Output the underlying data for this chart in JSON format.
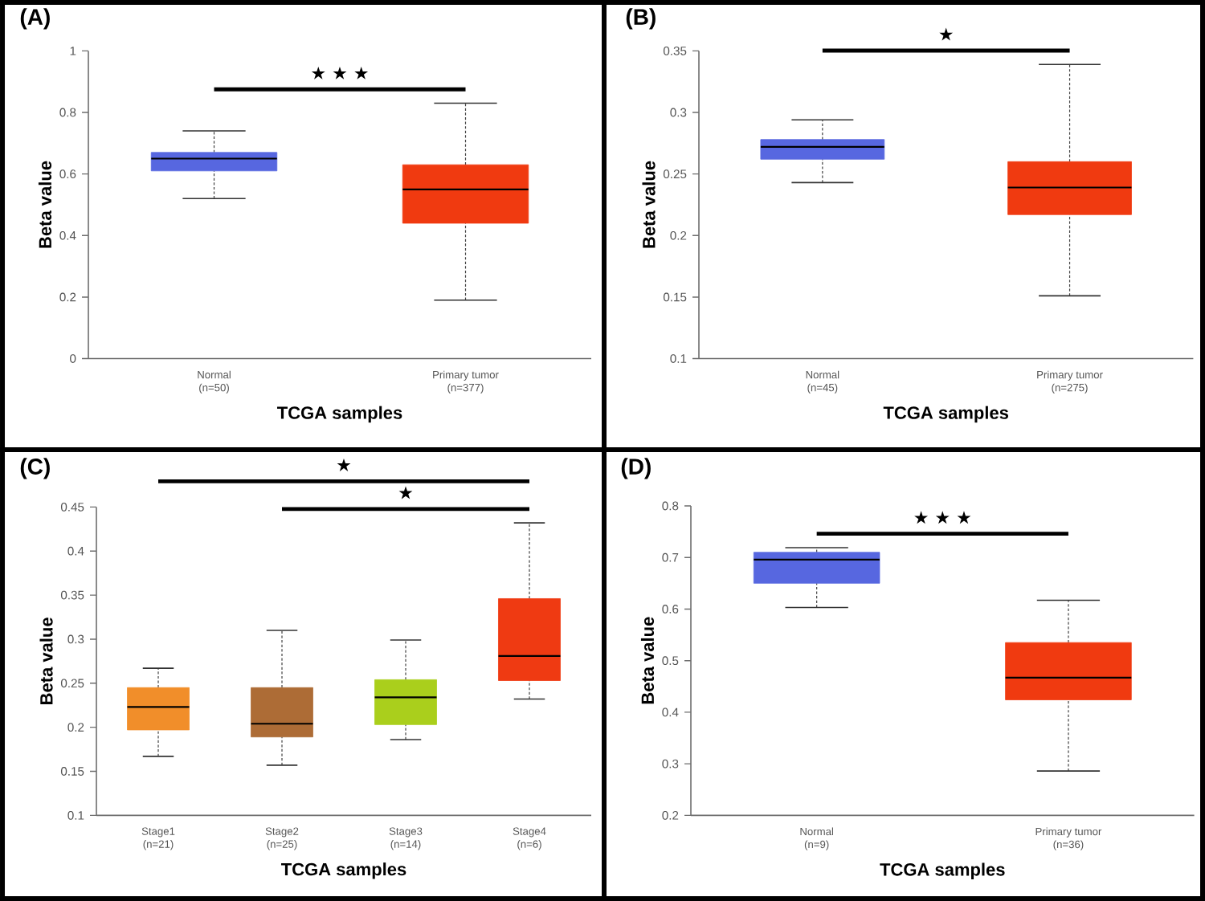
{
  "chart_data": [
    {
      "type": "box",
      "title": "(A)",
      "xlabel": "TCGA samples",
      "ylabel": "Beta value",
      "categories": [
        "Normal\n(n=50)",
        "Primary tumor\n(n=377)"
      ],
      "colors": [
        "#5767e0",
        "#f03a10"
      ],
      "boxes": [
        {
          "low": 0.52,
          "q1": 0.61,
          "median": 0.65,
          "q3": 0.67,
          "high": 0.74
        },
        {
          "low": 0.19,
          "q1": 0.44,
          "median": 0.55,
          "q3": 0.63,
          "high": 0.83
        }
      ],
      "ylim": [
        0,
        1
      ],
      "yticks": [
        0,
        0.2,
        0.4,
        0.6,
        0.8,
        1
      ],
      "annotations": [
        "★ ★ ★"
      ]
    },
    {
      "type": "box",
      "title": "(B)",
      "xlabel": "TCGA samples",
      "ylabel": "Beta value",
      "categories": [
        "Normal\n(n=45)",
        "Primary tumor\n(n=275)"
      ],
      "colors": [
        "#5767e0",
        "#f03a10"
      ],
      "boxes": [
        {
          "low": 0.243,
          "q1": 0.262,
          "median": 0.272,
          "q3": 0.278,
          "high": 0.294
        },
        {
          "low": 0.151,
          "q1": 0.217,
          "median": 0.239,
          "q3": 0.26,
          "high": 0.339
        }
      ],
      "ylim": [
        0.1,
        0.35
      ],
      "yticks": [
        0.1,
        0.15,
        0.2,
        0.25,
        0.3,
        0.35
      ],
      "annotations": [
        "★"
      ]
    },
    {
      "type": "box",
      "title": "(C)",
      "xlabel": "TCGA samples",
      "ylabel": "Beta value",
      "categories": [
        "Stage1\n(n=21)",
        "Stage2\n(n=25)",
        "Stage3\n(n=14)",
        "Stage4\n(n=6)"
      ],
      "colors": [
        "#f18e2a",
        "#ad6c36",
        "#aacf1c",
        "#ef3a12"
      ],
      "boxes": [
        {
          "low": 0.167,
          "q1": 0.197,
          "median": 0.223,
          "q3": 0.245,
          "high": 0.267
        },
        {
          "low": 0.157,
          "q1": 0.189,
          "median": 0.204,
          "q3": 0.245,
          "high": 0.31
        },
        {
          "low": 0.186,
          "q1": 0.203,
          "median": 0.234,
          "q3": 0.254,
          "high": 0.299
        },
        {
          "low": 0.232,
          "q1": 0.253,
          "median": 0.281,
          "q3": 0.346,
          "high": 0.432
        }
      ],
      "ylim": [
        0.1,
        0.45
      ],
      "yticks": [
        0.1,
        0.15,
        0.2,
        0.25,
        0.3,
        0.35,
        0.4,
        0.45
      ],
      "annotations": [
        "★",
        "★"
      ]
    },
    {
      "type": "box",
      "title": "(D)",
      "xlabel": "TCGA samples",
      "ylabel": "Beta value",
      "categories": [
        "Normal\n(n=9)",
        "Primary tumor\n(n=36)"
      ],
      "colors": [
        "#5767e0",
        "#f03a10"
      ],
      "boxes": [
        {
          "low": 0.603,
          "q1": 0.65,
          "median": 0.696,
          "q3": 0.71,
          "high": 0.719
        },
        {
          "low": 0.286,
          "q1": 0.424,
          "median": 0.467,
          "q3": 0.535,
          "high": 0.617
        }
      ],
      "ylim": [
        0.2,
        0.8
      ],
      "yticks": [
        0.2,
        0.3,
        0.4,
        0.5,
        0.6,
        0.7,
        0.8
      ],
      "annotations": [
        "★ ★ ★"
      ]
    }
  ]
}
